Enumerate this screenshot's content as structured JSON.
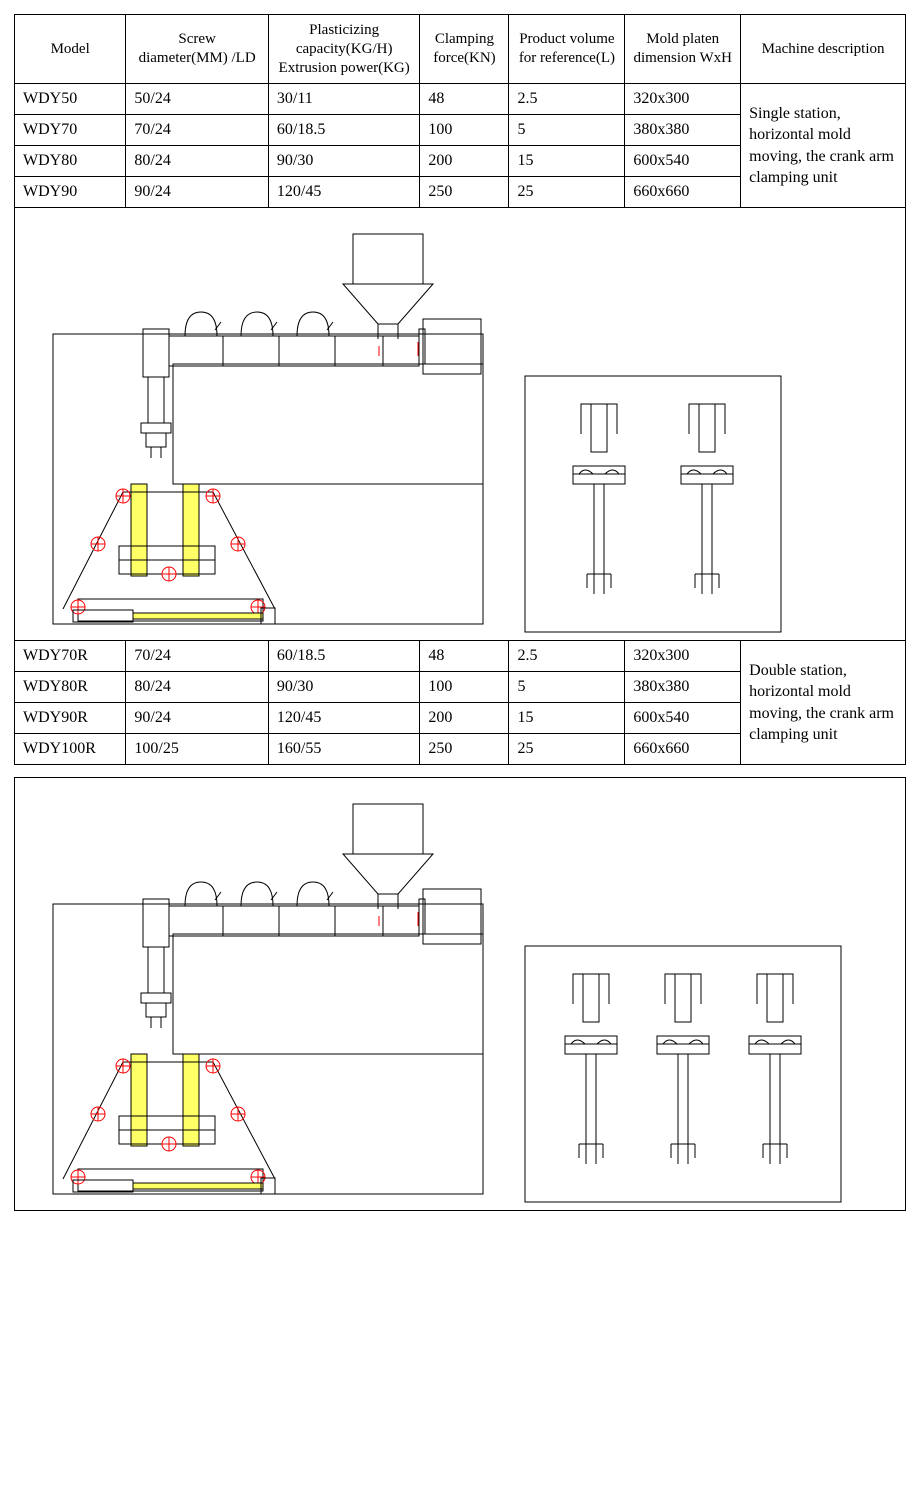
{
  "columns": [
    "Model",
    "Screw diameter(MM) /LD",
    "Plasticizing capacity(KG/H) Extrusion power(KG)",
    "Clamping force(KN)",
    "Product volume for reference(L)",
    "Mold platen dimension WxH",
    "Machine description"
  ],
  "group1": {
    "rows": [
      {
        "model": "WDY50",
        "screw": "50/24",
        "plast": "30/11",
        "clamp": "48",
        "vol": "2.5",
        "mold": "320x300"
      },
      {
        "model": "WDY70",
        "screw": "70/24",
        "plast": "60/18.5",
        "clamp": "100",
        "vol": "5",
        "mold": "380x380"
      },
      {
        "model": "WDY80",
        "screw": "80/24",
        "plast": "90/30",
        "clamp": "200",
        "vol": "15",
        "mold": "600x540"
      },
      {
        "model": "WDY90",
        "screw": "90/24",
        "plast": "120/45",
        "clamp": "250",
        "vol": "25",
        "mold": "660x660"
      }
    ],
    "description": "Single station, horizontal mold moving, the crank arm clamping unit",
    "diagram": {
      "type": "technical-line-drawing",
      "stroke_color": "#000000",
      "accent_color": "#ff0000",
      "highlight_color": "#ffff66",
      "stroke_width": 1,
      "background": "#ffffff",
      "left_machine_size": [
        480,
        420
      ],
      "right_panel_size": [
        260,
        260
      ],
      "right_panel_station_count": 2
    }
  },
  "group2": {
    "rows": [
      {
        "model": "WDY70R",
        "screw": "70/24",
        "plast": "60/18.5",
        "clamp": "48",
        "vol": "2.5",
        "mold": "320x300"
      },
      {
        "model": "WDY80R",
        "screw": "80/24",
        "plast": "90/30",
        "clamp": "100",
        "vol": "5",
        "mold": "380x380"
      },
      {
        "model": "WDY90R",
        "screw": "90/24",
        "plast": "120/45",
        "clamp": "200",
        "vol": "15",
        "mold": "600x540"
      },
      {
        "model": "WDY100R",
        "screw": "100/25",
        "plast": "160/55",
        "clamp": "250",
        "vol": "25",
        "mold": "660x660"
      }
    ],
    "description": "Double station, horizontal mold moving, the crank arm clamping unit",
    "diagram": {
      "type": "technical-line-drawing",
      "stroke_color": "#000000",
      "accent_color": "#ff0000",
      "highlight_color": "#ffff66",
      "stroke_width": 1,
      "background": "#ffffff",
      "left_machine_size": [
        480,
        420
      ],
      "right_panel_size": [
        320,
        260
      ],
      "right_panel_station_count": 3
    }
  }
}
